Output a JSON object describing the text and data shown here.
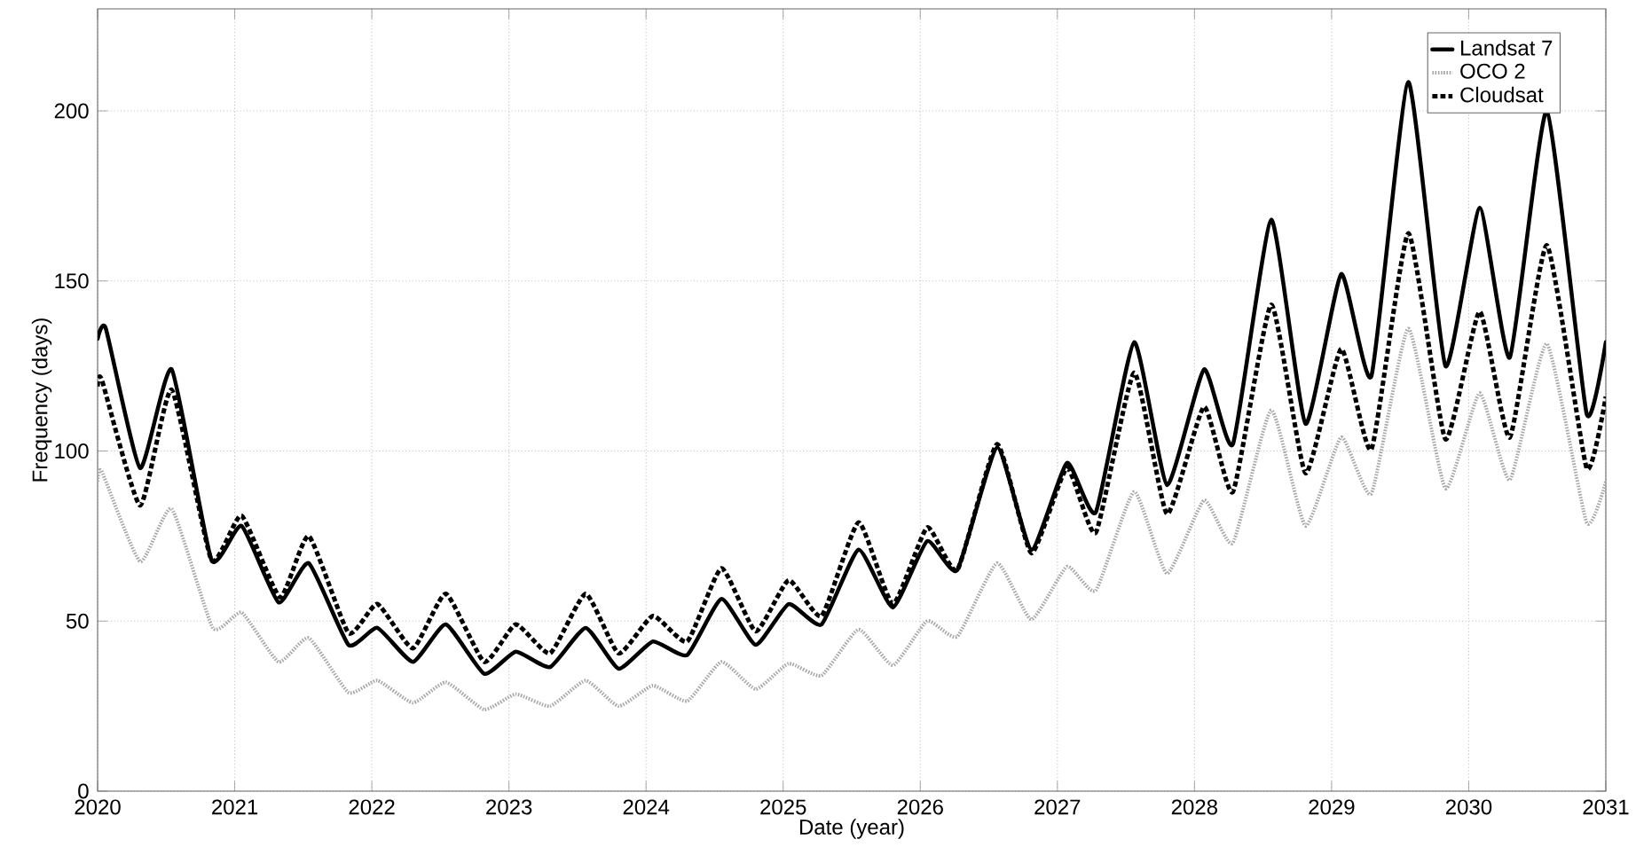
{
  "chart_data": {
    "type": "line",
    "xlabel": "Date (year)",
    "ylabel": "Frequency (days)",
    "xlim": [
      2020,
      2031
    ],
    "ylim": [
      0,
      230
    ],
    "xticks": [
      2020,
      2021,
      2022,
      2023,
      2024,
      2025,
      2026,
      2027,
      2028,
      2029,
      2030,
      2031
    ],
    "yticks": [
      0,
      50,
      100,
      150,
      200
    ],
    "grid": true,
    "legend": "top right",
    "marker": "none",
    "series": [
      {
        "name": "Landsat 7",
        "color": "#000000",
        "line_style": "solid",
        "x": [
          2020.0,
          2020.06,
          2020.31,
          2020.54,
          2020.83,
          2021.05,
          2021.32,
          2021.54,
          2021.83,
          2022.04,
          2022.3,
          2022.54,
          2022.82,
          2023.05,
          2023.3,
          2023.56,
          2023.8,
          2024.05,
          2024.3,
          2024.55,
          2024.8,
          2025.04,
          2025.28,
          2025.55,
          2025.8,
          2026.05,
          2026.27,
          2026.56,
          2026.81,
          2027.07,
          2027.28,
          2027.56,
          2027.8,
          2028.07,
          2028.28,
          2028.56,
          2028.81,
          2029.07,
          2029.29,
          2029.56,
          2029.83,
          2030.08,
          2030.3,
          2030.57,
          2030.86,
          2031.0
        ],
        "values": [
          133,
          136,
          95,
          124,
          68,
          78,
          55.5,
          67,
          43,
          48,
          38,
          49,
          34.5,
          41,
          36.5,
          48,
          36,
          44,
          40,
          56.5,
          43,
          55,
          49,
          71,
          54,
          73.5,
          65,
          101,
          71,
          96.5,
          82,
          132,
          90,
          124,
          102,
          168,
          108,
          152,
          122,
          208.5,
          125,
          171.5,
          127.5,
          200,
          111,
          132
        ]
      },
      {
        "name": "OCO 2",
        "color": "#a8a8a8",
        "line_style": "dotted",
        "x": [
          2020.0,
          2020.03,
          2020.31,
          2020.54,
          2020.84,
          2021.05,
          2021.32,
          2021.54,
          2021.83,
          2022.04,
          2022.3,
          2022.54,
          2022.82,
          2023.05,
          2023.3,
          2023.56,
          2023.8,
          2024.05,
          2024.3,
          2024.55,
          2024.8,
          2025.04,
          2025.28,
          2025.55,
          2025.8,
          2026.05,
          2026.27,
          2026.56,
          2026.81,
          2027.07,
          2027.28,
          2027.56,
          2027.8,
          2028.07,
          2028.28,
          2028.56,
          2028.81,
          2029.07,
          2029.29,
          2029.56,
          2029.83,
          2030.08,
          2030.3,
          2030.57,
          2030.86,
          2031.0
        ],
        "values": [
          91,
          94,
          67.5,
          83,
          48,
          52.5,
          38,
          45,
          29,
          32.5,
          26,
          32,
          24,
          28.5,
          25,
          32.5,
          25,
          31,
          26.5,
          38,
          30,
          37.5,
          34,
          47.5,
          37,
          50,
          45.5,
          67,
          50.5,
          66,
          59,
          88,
          64,
          85.5,
          73,
          112,
          78,
          104,
          87.5,
          136,
          89,
          117,
          91.5,
          131.5,
          79,
          91
        ]
      },
      {
        "name": "Cloudsat",
        "color": "#000000",
        "line_style": "dashed",
        "x": [
          2020.0,
          2020.03,
          2020.31,
          2020.54,
          2020.83,
          2021.05,
          2021.33,
          2021.54,
          2021.83,
          2022.04,
          2022.3,
          2022.54,
          2022.82,
          2023.05,
          2023.3,
          2023.56,
          2023.8,
          2024.05,
          2024.3,
          2024.55,
          2024.8,
          2025.04,
          2025.28,
          2025.55,
          2025.8,
          2026.05,
          2026.27,
          2026.56,
          2026.81,
          2027.07,
          2027.28,
          2027.56,
          2027.8,
          2028.07,
          2028.28,
          2028.56,
          2028.81,
          2029.07,
          2029.29,
          2029.56,
          2029.83,
          2030.08,
          2030.3,
          2030.57,
          2030.86,
          2031.0
        ],
        "values": [
          119,
          121,
          84,
          118,
          68,
          81,
          57,
          75,
          46.5,
          55,
          42,
          58,
          38,
          49,
          40.5,
          58,
          40.5,
          51.5,
          44,
          65.5,
          47,
          62,
          51.5,
          79,
          55,
          77.5,
          65,
          102,
          70,
          95,
          76,
          123,
          81.5,
          113,
          88,
          143,
          93.5,
          130,
          100.5,
          164,
          103.5,
          141,
          104,
          160.5,
          95,
          116
        ]
      }
    ]
  }
}
